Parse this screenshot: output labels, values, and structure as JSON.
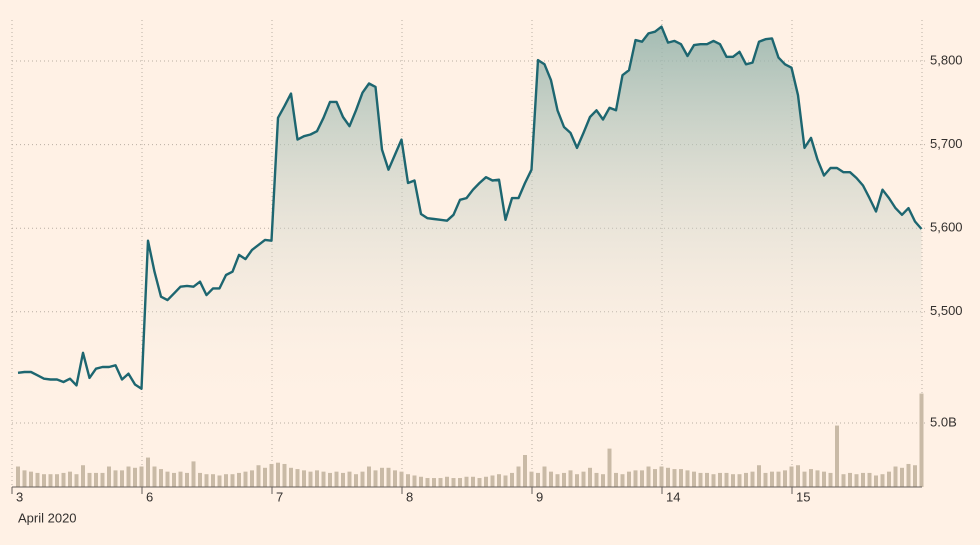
{
  "chart_data": {
    "type": "line",
    "categories": [
      "3",
      null,
      null,
      null,
      null,
      null,
      null,
      null,
      null,
      null,
      null,
      null,
      null,
      null,
      null,
      null,
      null,
      null,
      null,
      null,
      "6",
      null,
      null,
      null,
      null,
      null,
      null,
      null,
      null,
      null,
      null,
      null,
      null,
      null,
      null,
      null,
      null,
      null,
      null,
      null,
      "7",
      null,
      null,
      null,
      null,
      null,
      null,
      null,
      null,
      null,
      null,
      null,
      null,
      null,
      null,
      null,
      null,
      null,
      null,
      null,
      "8",
      null,
      null,
      null,
      null,
      null,
      null,
      null,
      null,
      null,
      null,
      null,
      null,
      null,
      null,
      null,
      null,
      null,
      null,
      null,
      "9",
      null,
      null,
      null,
      null,
      null,
      null,
      null,
      null,
      null,
      null,
      null,
      null,
      null,
      null,
      null,
      null,
      null,
      null,
      null,
      "14",
      null,
      null,
      null,
      null,
      null,
      null,
      null,
      null,
      null,
      null,
      null,
      null,
      null,
      null,
      null,
      null,
      null,
      null,
      null,
      "15",
      null,
      null,
      null,
      null,
      null,
      null,
      null,
      null,
      null,
      null,
      null,
      null,
      null,
      null,
      null,
      null,
      null,
      null,
      null
    ],
    "x_sublabel": "April 2020",
    "values": [
      5427,
      5428,
      5428,
      5424,
      5420,
      5419,
      5419,
      5416,
      5420,
      5412,
      5451,
      5421,
      5432,
      5434,
      5434,
      5436,
      5419,
      5426,
      5413,
      5408,
      5585,
      5548,
      5518,
      5514,
      5522,
      5530,
      5531,
      5530,
      5536,
      5520,
      5528,
      5528,
      5544,
      5548,
      5568,
      5563,
      5574,
      5580,
      5586,
      5585,
      5732,
      5746,
      5761,
      5706,
      5710,
      5712,
      5716,
      5732,
      5751,
      5751,
      5733,
      5722,
      5741,
      5762,
      5773,
      5769,
      5694,
      5670,
      5688,
      5706,
      5654,
      5657,
      5617,
      5612,
      5611,
      5610,
      5609,
      5616,
      5634,
      5636,
      5646,
      5654,
      5661,
      5657,
      5658,
      5610,
      5636,
      5636,
      5654,
      5670,
      5801,
      5796,
      5777,
      5741,
      5721,
      5714,
      5696,
      5714,
      5733,
      5741,
      5730,
      5744,
      5741,
      5783,
      5789,
      5825,
      5823,
      5833,
      5835,
      5841,
      5822,
      5824,
      5820,
      5806,
      5819,
      5820,
      5820,
      5824,
      5820,
      5805,
      5805,
      5811,
      5796,
      5798,
      5823,
      5826,
      5827,
      5804,
      5796,
      5792,
      5759,
      5696,
      5708,
      5682,
      5663,
      5672,
      5672,
      5667,
      5667,
      5660,
      5651,
      5636,
      5620,
      5646,
      5636,
      5624,
      5616,
      5624,
      5608,
      5599
    ],
    "color": "#1d6670",
    "fill": true,
    "ylim": [
      5367,
      5849
    ],
    "yticks": [
      {
        "value": 5500,
        "label": "5,500"
      },
      {
        "value": 5600,
        "label": "5,600"
      },
      {
        "value": 5700,
        "label": "5,700"
      },
      {
        "value": 5800,
        "label": "5,800"
      }
    ],
    "grid": true,
    "volume": {
      "color": "#c9baa6",
      "ylim": [
        0,
        8
      ],
      "yticks": [
        {
          "value": 5,
          "label": "5.0B"
        }
      ],
      "values": [
        1.6,
        1.3,
        1.2,
        1.1,
        1.0,
        1.0,
        1.0,
        1.1,
        1.2,
        1.0,
        1.7,
        1.1,
        1.1,
        1.1,
        1.6,
        1.3,
        1.3,
        1.6,
        1.5,
        1.6,
        2.3,
        1.6,
        1.4,
        1.2,
        1.1,
        1.2,
        1.1,
        2.0,
        1.1,
        1.0,
        1.0,
        0.9,
        1.0,
        1.0,
        1.1,
        1.2,
        1.3,
        1.7,
        1.5,
        1.8,
        1.9,
        1.8,
        1.5,
        1.4,
        1.3,
        1.2,
        1.3,
        1.2,
        1.1,
        1.2,
        1.1,
        1.2,
        1.0,
        1.2,
        1.6,
        1.3,
        1.5,
        1.5,
        1.3,
        1.2,
        1.0,
        0.9,
        0.8,
        0.7,
        0.7,
        0.7,
        0.8,
        0.7,
        0.7,
        0.8,
        0.8,
        0.7,
        0.8,
        0.9,
        1.0,
        0.9,
        1.1,
        1.6,
        2.5,
        1.2,
        1.1,
        1.6,
        1.2,
        1.0,
        1.1,
        1.3,
        1.0,
        1.2,
        1.5,
        1.1,
        1.0,
        3.0,
        1.1,
        1.0,
        1.2,
        1.3,
        1.3,
        1.6,
        1.4,
        1.6,
        1.5,
        1.4,
        1.4,
        1.3,
        1.2,
        1.1,
        1.1,
        1.0,
        1.1,
        1.1,
        1.0,
        1.0,
        1.1,
        1.2,
        1.7,
        1.1,
        1.2,
        1.2,
        1.3,
        1.6,
        1.7,
        1.2,
        1.4,
        1.3,
        1.2,
        1.1,
        4.8,
        1.0,
        1.1,
        1.0,
        1.1,
        1.1,
        0.9,
        1.0,
        1.2,
        1.6,
        1.5,
        1.8,
        1.7,
        7.3
      ]
    }
  }
}
